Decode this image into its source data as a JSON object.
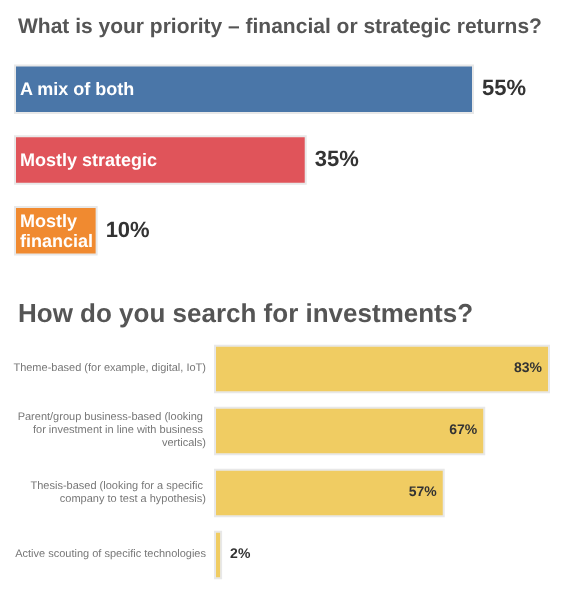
{
  "chart_data": [
    {
      "type": "bar",
      "orientation": "horizontal",
      "title": "What is your priority – financial or strategic returns?",
      "categories": [
        "A mix of both",
        "Mostly strategic",
        "Mostly financial"
      ],
      "values": [
        55,
        35,
        10
      ],
      "colors": [
        "#4a76a8",
        "#e0545a",
        "#f08a30"
      ],
      "value_labels": [
        "55%",
        "35%",
        "10%"
      ]
    },
    {
      "type": "bar",
      "orientation": "horizontal",
      "title": "How do you search for investments?",
      "categories": [
        "Theme-based (for example, digital, IoT)",
        "Parent/group business-based (looking for investment in line with business verticals)",
        "Thesis-based (looking for a specific company to test a hypothesis)",
        "Active scouting of specific technologies"
      ],
      "values": [
        83,
        67,
        57,
        2
      ],
      "color": "#f0cc62",
      "value_labels": [
        "83%",
        "67%",
        "57%",
        "2%"
      ]
    }
  ]
}
